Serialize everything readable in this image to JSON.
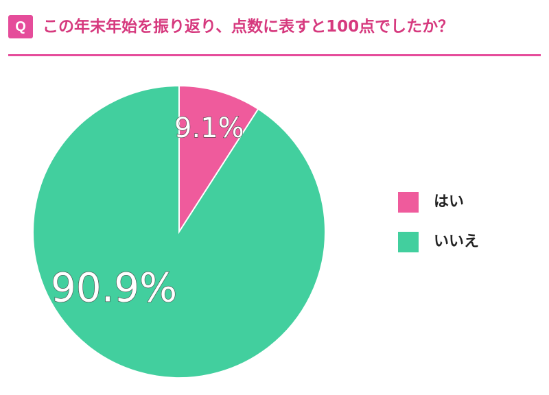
{
  "header": {
    "badge": "Q",
    "question": "この年末年始を振り返り、点数に表すと100点でしたか？"
  },
  "colors": {
    "accent": "#e54c9a",
    "yes": "#ef5b9c",
    "no": "#42cf9e"
  },
  "chart_data": {
    "type": "pie",
    "categories": [
      "はい",
      "いいえ"
    ],
    "values": [
      9.1,
      90.9
    ],
    "labels": [
      "9.1%",
      "90.9%"
    ],
    "start_angle_deg": 0,
    "direction": "clockwise",
    "legend_position": "right",
    "title": ""
  }
}
